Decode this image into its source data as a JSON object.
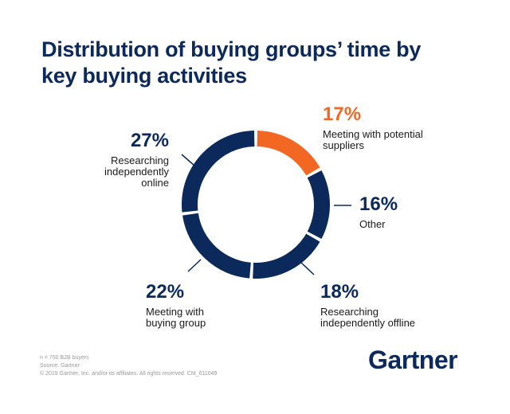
{
  "chart_data": {
    "type": "donut",
    "title": "Distribution of buying groups’ time by key buying activities",
    "categories": [
      "Meeting with potential suppliers",
      "Other",
      "Researching independently offline",
      "Meeting with buying group",
      "Researching independently online"
    ],
    "values": [
      17,
      16,
      18,
      22,
      27
    ],
    "value_labels": [
      "17%",
      "16%",
      "18%",
      "22%",
      "27%"
    ],
    "colors": [
      "#f26722",
      "#0b2a5b",
      "#0b2a5b",
      "#0b2a5b",
      "#0b2a5b"
    ]
  },
  "footer": {
    "notes": [
      "n = 750 B2B buyers",
      "Source: Gartner",
      "© 2019 Gartner, Inc. and/or its affiliates. All rights reserved. CM_611049"
    ],
    "logo": "Gartner"
  }
}
